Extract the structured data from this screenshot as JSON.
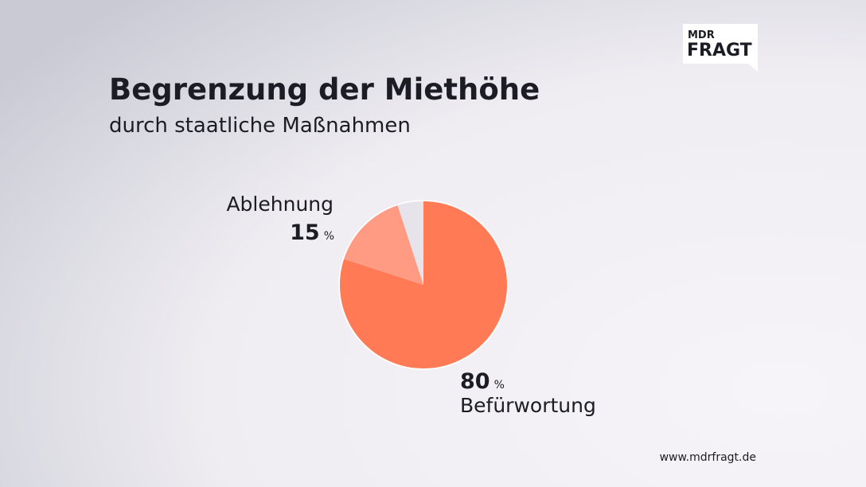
{
  "chart_data": {
    "type": "pie",
    "title": "Begrenzung der Miethöhe",
    "subtitle": "durch staatliche Maßnahmen",
    "categories": [
      "Befürwortung",
      "Ablehnung",
      null
    ],
    "values": [
      80,
      15,
      5
    ],
    "colors": [
      "#ff7a55",
      "#ff9b82",
      "#e6e4ea"
    ],
    "unit": "%"
  },
  "logo": {
    "top": "MDR",
    "bottom": "FRAGT"
  },
  "footer": "www.mdrfragt.de"
}
